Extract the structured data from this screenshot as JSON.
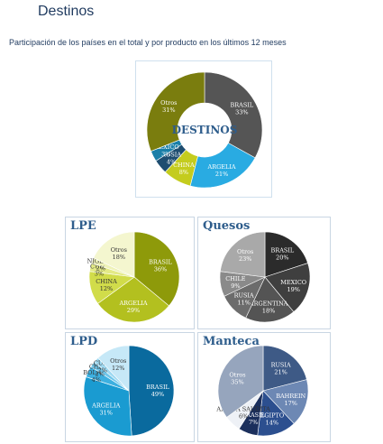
{
  "header": {
    "title": "Destinos",
    "subtitle": "Participación de los países en el total y por producto en los últimos 12 meses"
  },
  "chart_data": [
    {
      "type": "pie",
      "title": "DESTINOS",
      "style": "donut",
      "series": [
        {
          "label": "BRASIL",
          "value": 33,
          "color": "#555555",
          "text_color": "#ffffff"
        },
        {
          "label": "ARGELIA",
          "value": 21,
          "color": "#29abe2",
          "text_color": "#ffffff"
        },
        {
          "label": "CHINA",
          "value": 8,
          "color": "#c4cc1e",
          "text_color": "#ffffff"
        },
        {
          "label": "RUSIA",
          "value": 4,
          "color": "#1e4d70",
          "text_color": "#ffffff"
        },
        {
          "label": "MEXICO",
          "value": 3,
          "color": "#1a7fa8",
          "text_color": "#ffffff"
        },
        {
          "label": "Otros",
          "value": 31,
          "color": "#7a7d0e",
          "text_color": "#ffffff"
        }
      ]
    },
    {
      "type": "pie",
      "title": "LPE",
      "series": [
        {
          "label": "BRASIL",
          "value": 36,
          "color": "#8e9a0a",
          "text_color": "#ffffff"
        },
        {
          "label": "ARGELIA",
          "value": 29,
          "color": "#b3c01f",
          "text_color": "#ffffff"
        },
        {
          "label": "CHINA",
          "value": 12,
          "color": "#d1dc4a",
          "text_color": "#333333"
        },
        {
          "label": "CUBA",
          "value": 3,
          "color": "#e3ea86",
          "text_color": "#333333"
        },
        {
          "label": "NIGERIA",
          "value": 2,
          "color": "#eef2b8",
          "text_color": "#333333"
        },
        {
          "label": "Otros",
          "value": 18,
          "color": "#f4f6cf",
          "text_color": "#333333"
        }
      ]
    },
    {
      "type": "pie",
      "title": "Quesos",
      "series": [
        {
          "label": "BRASIL",
          "value": 20,
          "color": "#2b2b2b",
          "text_color": "#ffffff"
        },
        {
          "label": "MEXICO",
          "value": 19,
          "color": "#3f3f3f",
          "text_color": "#ffffff"
        },
        {
          "label": "ARGENTINA",
          "value": 18,
          "color": "#545454",
          "text_color": "#ffffff"
        },
        {
          "label": "RUSIA",
          "value": 11,
          "color": "#6c6c6c",
          "text_color": "#ffffff"
        },
        {
          "label": "CHILE",
          "value": 9,
          "color": "#8a8a8a",
          "text_color": "#ffffff"
        },
        {
          "label": "Otros",
          "value": 23,
          "color": "#a9a9a9",
          "text_color": "#ffffff"
        }
      ]
    },
    {
      "type": "pie",
      "title": "LPD",
      "series": [
        {
          "label": "BRASIL",
          "value": 49,
          "color": "#0a6a9e",
          "text_color": "#ffffff"
        },
        {
          "label": "ARGELIA",
          "value": 31,
          "color": "#1a9bd1",
          "text_color": "#ffffff"
        },
        {
          "label": "BOLIVIA",
          "value": 4,
          "color": "#3db0e0",
          "text_color": "#333333"
        },
        {
          "label": "CHINA",
          "value": 2,
          "color": "#6fc6ea",
          "text_color": "#333333"
        },
        {
          "label": "CUBA",
          "value": 2,
          "color": "#9fd9f1",
          "text_color": "#333333"
        },
        {
          "label": "Otros",
          "value": 12,
          "color": "#c6e8f7",
          "text_color": "#333333"
        }
      ]
    },
    {
      "type": "pie",
      "title": "Manteca",
      "series": [
        {
          "label": "RUSIA",
          "value": 21,
          "color": "#3e5a86",
          "text_color": "#ffffff"
        },
        {
          "label": "BAHREIN",
          "value": 17,
          "color": "#6d88b4",
          "text_color": "#ffffff"
        },
        {
          "label": "EGIPTO",
          "value": 14,
          "color": "#2c4f8f",
          "text_color": "#ffffff"
        },
        {
          "label": "BRASIL",
          "value": 7,
          "color": "#1b2f5c",
          "text_color": "#ffffff"
        },
        {
          "label": "ARABIA SAUDITA",
          "value": 6,
          "color": "#eef1f6",
          "text_color": "#333333"
        },
        {
          "label": "Otros",
          "value": 35,
          "color": "#96a5bd",
          "text_color": "#ffffff"
        }
      ]
    }
  ]
}
